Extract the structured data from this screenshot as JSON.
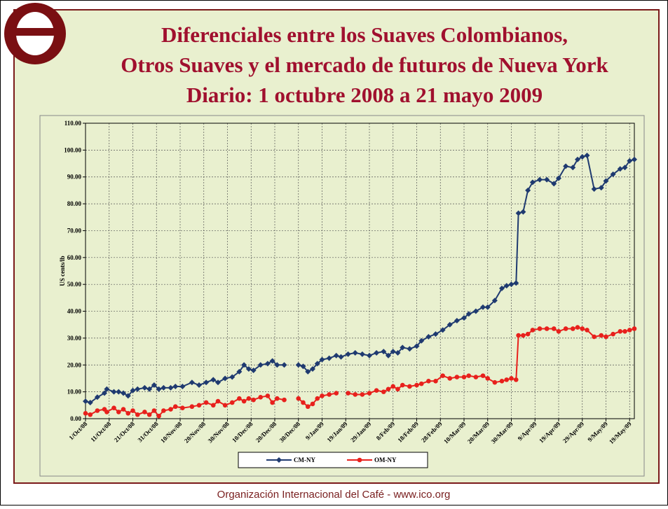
{
  "chart_data": {
    "type": "line",
    "title": [
      "Diferenciales entre los Suaves Colombianos,",
      "Otros Suaves y el mercado de futuros de Nueva York",
      "Diario:  1 octubre 2008 a 21 mayo 2009"
    ],
    "y_label": "US cents/lb",
    "footer": "Organización Internacional del Café  -  www.ico.org",
    "x": [
      "1/Oct/08",
      "3/Oct/08",
      "6/Oct/08",
      "9/Oct/08",
      "10/Oct/08",
      "13/Oct/08",
      "15/Oct/08",
      "17/Oct/08",
      "19/Oct/08",
      "21/Oct/08",
      "23/Oct/08",
      "26/Oct/08",
      "28/Oct/08",
      "30/Oct/08",
      "1/Nov/08",
      "3/Nov/08",
      "6/Nov/08",
      "8/Nov/08",
      "11/Nov/08",
      "15/Nov/08",
      "18/Nov/08",
      "21/Nov/08",
      "24/Nov/08",
      "26/Nov/08",
      "29/Nov/08",
      "2/Dec/08",
      "5/Dec/08",
      "7/Dec/08",
      "9/Dec/08",
      "11/Dec/08",
      "14/Dec/08",
      "17/Dec/08",
      "19/Dec/08",
      "21/Dec/08",
      "24/Dec/08",
      "26/Dec/08",
      "30/Dec/08",
      "1/Jan/09",
      "3/Jan/09",
      "5/Jan/09",
      "7/Jan/09",
      "9/Jan/09",
      "12/Jan/09",
      "15/Jan/09",
      "17/Jan/09",
      "20/Jan/09",
      "23/Jan/09",
      "26/Jan/09",
      "29/Jan/09",
      "1/Feb/09",
      "4/Feb/09",
      "6/Feb/09",
      "8/Feb/09",
      "10/Feb/09",
      "12/Feb/09",
      "15/Feb/09",
      "18/Feb/09",
      "20/Feb/09",
      "23/Feb/09",
      "26/Feb/09",
      "1/Mar/09",
      "4/Mar/09",
      "7/Mar/09",
      "10/Mar/09",
      "12/Mar/09",
      "15/Mar/09",
      "18/Mar/09",
      "20/Mar/09",
      "23/Mar/09",
      "26/Mar/09",
      "28/Mar/09",
      "30/Mar/09",
      "1/Apr/09",
      "2/Apr/09",
      "4/Apr/09",
      "6/Apr/09",
      "8/Apr/09",
      "11/Apr/09",
      "14/Apr/09",
      "17/Apr/09",
      "19/Apr/09",
      "22/Apr/09",
      "25/Apr/09",
      "27/Apr/09",
      "29/Apr/09",
      "1/May/09",
      "4/May/09",
      "7/May/09",
      "9/May/09",
      "12/May/09",
      "15/May/09",
      "17/May/09",
      "19/May/09",
      "21/May/09"
    ],
    "series": [
      {
        "name": "CM-NY",
        "color": "#1f3a70",
        "marker": "diamond",
        "values": [
          6.5,
          6,
          8,
          9.5,
          11,
          10,
          10,
          9.5,
          8.5,
          10.5,
          11,
          11.5,
          11,
          12.5,
          11,
          11.5,
          11.5,
          12,
          12,
          13.5,
          12.5,
          13.5,
          14.5,
          13.5,
          15,
          15.5,
          17.5,
          20,
          18.5,
          18,
          20,
          20.5,
          21.5,
          20,
          20,
          null,
          20,
          19.5,
          17.5,
          18.5,
          20.5,
          22,
          22.5,
          23.5,
          23,
          24,
          24.5,
          24,
          23.5,
          24.5,
          25,
          23.5,
          25,
          24.5,
          26.5,
          26,
          27,
          29,
          30.5,
          31.5,
          33,
          35,
          36.5,
          37.5,
          39,
          40,
          41.5,
          41.5,
          44,
          48.5,
          49.5,
          50,
          50.5,
          76.5,
          77,
          85,
          88,
          89,
          89,
          87.5,
          89.5,
          94,
          93.5,
          96.5,
          97.5,
          98,
          85.5,
          86,
          88.5,
          91,
          93,
          93.5,
          96,
          96.5
        ]
      },
      {
        "name": "OM-NY",
        "color": "#e8201c",
        "marker": "circle",
        "values": [
          2,
          1.5,
          3,
          3.5,
          2.5,
          4,
          2.5,
          3.5,
          2,
          3,
          1.5,
          2.5,
          1.5,
          3,
          1,
          3,
          3.5,
          4.5,
          4,
          4.5,
          5,
          6,
          5,
          6.5,
          5,
          6,
          7.5,
          6.5,
          7.5,
          7,
          8,
          8.5,
          6,
          7.5,
          7,
          null,
          7.5,
          6,
          4.5,
          5.5,
          7.5,
          8.5,
          9,
          9.5,
          null,
          9.5,
          9,
          9,
          9.5,
          10.5,
          10,
          11,
          12,
          11,
          12.5,
          12,
          12.5,
          13,
          14,
          14,
          16,
          15,
          15.5,
          15.5,
          16,
          15.5,
          16,
          15,
          13.5,
          14,
          14.5,
          15,
          14.5,
          31,
          31,
          31.5,
          33,
          33.5,
          33.5,
          33.5,
          32.5,
          33.5,
          33.5,
          34,
          33.5,
          33,
          30.5,
          31,
          30.5,
          31.5,
          32.5,
          32.5,
          33,
          33.5
        ]
      }
    ],
    "xlim": [
      "1/Oct/08",
      "21/May/09"
    ],
    "xticks": [
      "1/Oct/08",
      "11/Oct/08",
      "21/Oct/08",
      "31/Oct/08",
      "10/Nov/08",
      "20/Nov/08",
      "30/Nov/08",
      "10/Dec/08",
      "20/Dec/08",
      "30/Dec/08",
      "9/Jan/09",
      "19/Jan/09",
      "29/Jan/09",
      "8/Feb/09",
      "18/Feb/09",
      "28/Feb/09",
      "10/Mar/09",
      "20/Mar/09",
      "30/Mar/09",
      "9/Apr/09",
      "19/Apr/09",
      "29/Apr/09",
      "9/May/09",
      "19/May/09"
    ],
    "ylim": [
      0,
      110
    ],
    "yticks": [
      {
        "value": 0,
        "label": "0.00"
      },
      {
        "value": 10,
        "label": "10.00"
      },
      {
        "value": 20,
        "label": "20.00"
      },
      {
        "value": 30,
        "label": "30.00"
      },
      {
        "value": 40,
        "label": "40.00"
      },
      {
        "value": 50,
        "label": "50.00"
      },
      {
        "value": 60,
        "label": "60.00"
      },
      {
        "value": 70,
        "label": "70.00"
      },
      {
        "value": 80,
        "label": "80.00"
      },
      {
        "value": 90,
        "label": "90.00"
      },
      {
        "value": 100,
        "label": "100.00"
      },
      {
        "value": 110,
        "label": "110.00"
      }
    ],
    "grid": true,
    "legend": "bottom"
  }
}
